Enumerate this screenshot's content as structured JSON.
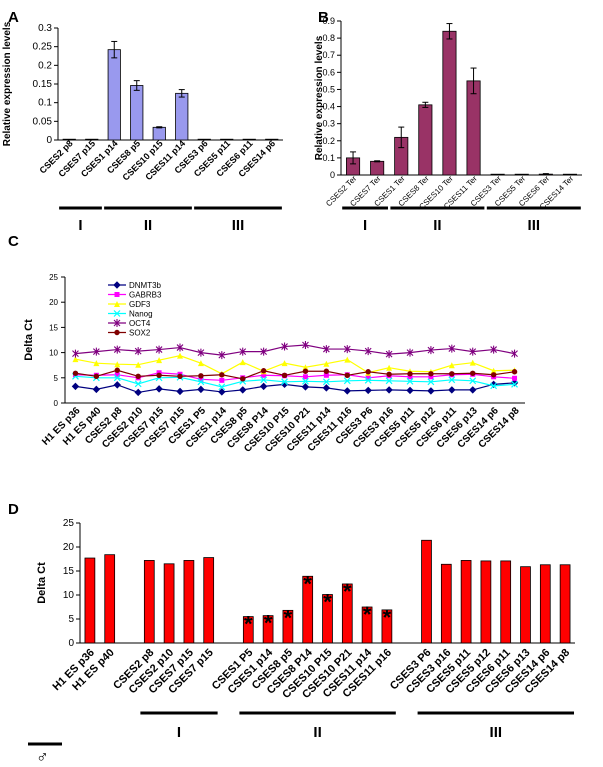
{
  "chart_data": [
    {
      "panel": "A",
      "type": "bar",
      "ylabel": "Relative expression levels",
      "ylim": [
        0,
        0.3
      ],
      "yticks": [
        0,
        0.05,
        0.1,
        0.15,
        0.2,
        0.25,
        0.3
      ],
      "ytick_labels": [
        "0",
        "0.05",
        "0.1",
        "0.15",
        "0.2",
        "0.25",
        "0.3"
      ],
      "bar_color": "#9999ee",
      "categories": [
        "CSES2 p8",
        "CSES7 p15",
        "CSES1 p14",
        "CSES8 p5",
        "CSES10 p15",
        "CSES11 p14",
        "CSES3 p6",
        "CSES5 p11",
        "CSES6 p11",
        "CSES14 p6"
      ],
      "values": [
        0.0,
        0.0,
        0.242,
        0.146,
        0.034,
        0.125,
        0.0,
        0.0,
        0.0,
        0.0
      ],
      "errors": [
        0,
        0,
        0.022,
        0.013,
        0.0015,
        0.01,
        0,
        0,
        0,
        0
      ],
      "groups": [
        {
          "label": "I",
          "from": 0,
          "to": 1
        },
        {
          "label": "II",
          "from": 2,
          "to": 5
        },
        {
          "label": "III",
          "from": 6,
          "to": 9
        }
      ]
    },
    {
      "panel": "B",
      "type": "bar",
      "ylabel": "Relative expression levels",
      "ylim": [
        0,
        0.9
      ],
      "yticks": [
        0,
        0.1,
        0.2,
        0.3,
        0.4,
        0.5,
        0.6,
        0.7,
        0.8,
        0.9
      ],
      "ytick_labels": [
        "0",
        "0.1",
        "0.2",
        "0.3",
        "0.4",
        "0.5",
        "0.6",
        "0.7",
        "0.8",
        "0.9"
      ],
      "bar_color": "#993366",
      "categories": [
        "CSES2 Ter",
        "CSES7 Ter",
        "CSES1 Ter",
        "CSES8 Ter",
        "CSES10 Ter",
        "CSES11 Ter",
        "CSES3 Ter",
        "CSES5 Ter",
        "CSES6 Ter",
        "CSES14 Ter"
      ],
      "values": [
        0.1,
        0.08,
        0.22,
        0.41,
        0.84,
        0.55,
        0.0,
        0.0,
        0.005,
        0.0
      ],
      "errors": [
        0.035,
        0.003,
        0.06,
        0.015,
        0.045,
        0.075,
        0,
        0,
        0.003,
        0
      ],
      "groups": [
        {
          "label": "I",
          "from": 0,
          "to": 1
        },
        {
          "label": "II",
          "from": 2,
          "to": 5
        },
        {
          "label": "III",
          "from": 6,
          "to": 9
        }
      ]
    },
    {
      "panel": "C",
      "type": "line",
      "ylabel": "Delta Ct",
      "ylim": [
        0,
        25
      ],
      "yticks": [
        0,
        5,
        10,
        15,
        20,
        25
      ],
      "ytick_labels": [
        "0",
        "5",
        "10",
        "15",
        "20",
        "25"
      ],
      "categories": [
        "H1 ES p36",
        "H1 ES p40",
        "CSES2 p8",
        "CSES2 p10",
        "CSES7 p15",
        "CSES7 p15",
        "CSES1 P5",
        "CSES1 p14",
        "CSES8 p5",
        "CSES8 P14",
        "CSES10 P15",
        "CSES10 P21",
        "CSES11 p14",
        "CSES11 p16",
        "CSES3 P6",
        "CSES3 p16",
        "CSES5 p11",
        "CSES5 p12",
        "CSES6 p11",
        "CSES6 p13",
        "CSES14 p6",
        "CSES14 p8"
      ],
      "series": [
        {
          "name": "DNMT3b",
          "color": "#000080",
          "marker": "diamond",
          "values": [
            3.3,
            2.7,
            3.6,
            2.1,
            2.8,
            2.3,
            2.7,
            2.2,
            2.6,
            3.3,
            3.7,
            3.2,
            3.0,
            2.4,
            2.5,
            2.6,
            2.5,
            2.4,
            2.6,
            2.6,
            3.7,
            4.0
          ]
        },
        {
          "name": "GABRB3",
          "color": "#ff00ff",
          "marker": "square",
          "values": [
            5.6,
            5.5,
            5.6,
            5.0,
            6.0,
            5.7,
            4.7,
            4.5,
            5.0,
            5.5,
            5.4,
            5.2,
            5.5,
            5.6,
            5.0,
            5.4,
            5.2,
            5.2,
            5.6,
            5.7,
            5.2,
            4.9
          ]
        },
        {
          "name": "GDF3",
          "color": "#ffff00",
          "marker": "triangle",
          "values": [
            8.7,
            7.9,
            7.7,
            7.6,
            8.5,
            9.4,
            7.9,
            5.8,
            8.1,
            6.3,
            7.9,
            7.1,
            7.8,
            8.6,
            6.0,
            7.0,
            6.3,
            6.2,
            7.5,
            8.0,
            6.4,
            6.5
          ]
        },
        {
          "name": "Nanog",
          "color": "#00ffff",
          "marker": "x",
          "values": [
            5.3,
            5.0,
            5.0,
            3.8,
            5.0,
            5.1,
            4.2,
            3.2,
            4.3,
            4.6,
            4.2,
            4.3,
            4.2,
            4.4,
            4.5,
            4.4,
            4.3,
            4.2,
            4.6,
            4.4,
            3.4,
            3.7
          ]
        },
        {
          "name": "OCT4",
          "color": "#800080",
          "marker": "star",
          "values": [
            9.8,
            10.2,
            10.6,
            10.3,
            10.6,
            11.0,
            10.0,
            9.5,
            10.2,
            10.2,
            11.2,
            11.5,
            10.7,
            10.7,
            10.3,
            9.7,
            10.0,
            10.5,
            10.8,
            10.2,
            10.6,
            9.8
          ]
        },
        {
          "name": "SOX2",
          "color": "#800000",
          "marker": "circle",
          "values": [
            5.9,
            5.3,
            6.5,
            5.3,
            5.5,
            5.3,
            5.4,
            5.6,
            4.8,
            6.4,
            5.5,
            6.3,
            6.3,
            5.5,
            6.2,
            5.7,
            5.8,
            5.8,
            5.8,
            5.9,
            5.6,
            6.2
          ]
        }
      ]
    },
    {
      "panel": "D",
      "type": "bar",
      "ylabel": "Delta Ct",
      "ylim": [
        0,
        25
      ],
      "yticks": [
        0,
        5,
        10,
        15,
        20,
        25
      ],
      "ytick_labels": [
        "0",
        "5",
        "10",
        "15",
        "20",
        "25"
      ],
      "bar_color": "#ff0000",
      "categories": [
        "H1 ES p36",
        "H1 ES p40",
        "",
        "CSES2 p8",
        "CSES2 p10",
        "CSES7 p15",
        "CSES7 p15",
        "",
        "CSES1 P5",
        "CSES1 p14",
        "CSES8 p5",
        "CSES8 P14",
        "CSES10 P15",
        "CSES10 P21",
        "CSES11 p14",
        "CSES11 p16",
        "",
        "CSES3 P6",
        "CSES3 p16",
        "CSES5 p11",
        "CSES5 p12",
        "CSES6 p11",
        "CSES6 p13",
        "CSES14 p6",
        "CSES14 p8"
      ],
      "values": [
        17.7,
        18.4,
        null,
        17.2,
        16.5,
        17.2,
        17.8,
        null,
        5.5,
        5.7,
        6.8,
        13.9,
        10.1,
        12.3,
        7.5,
        6.9,
        null,
        21.4,
        16.4,
        17.2,
        17.1,
        17.1,
        15.9,
        16.3,
        16.3
      ],
      "significant": [
        false,
        false,
        false,
        false,
        false,
        false,
        false,
        false,
        true,
        true,
        true,
        true,
        true,
        true,
        true,
        true,
        false,
        false,
        false,
        false,
        false,
        false,
        false,
        false,
        false
      ],
      "significance_marker": "*",
      "male_marker": "♂",
      "groups": [
        {
          "label": "I",
          "from": 3,
          "to": 6
        },
        {
          "label": "II",
          "from": 8,
          "to": 15
        },
        {
          "label": "III",
          "from": 17,
          "to": 24
        }
      ]
    }
  ]
}
